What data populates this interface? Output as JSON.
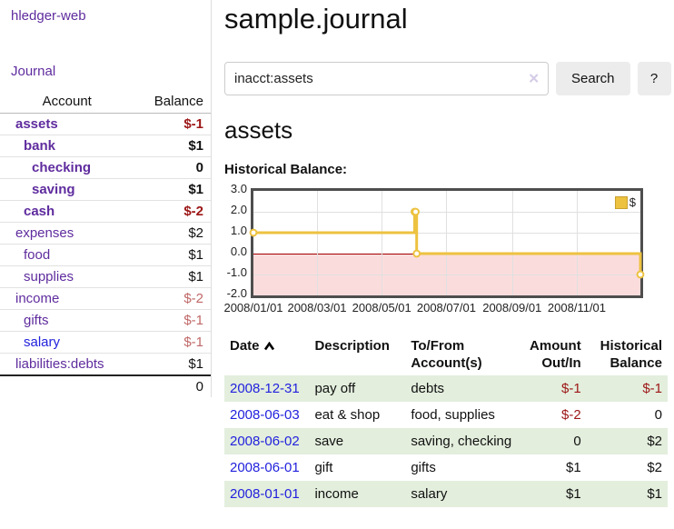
{
  "app": {
    "title": "hledger-web"
  },
  "sidebar": {
    "journal_link": "Journal",
    "accounts_table": {
      "headers": {
        "account": "Account",
        "balance": "Balance"
      },
      "rows": [
        {
          "name": "assets",
          "depth": 1,
          "bold": true,
          "balance": "$-1",
          "balance_class": "neg"
        },
        {
          "name": "bank",
          "depth": 2,
          "bold": true,
          "balance": "$1",
          "balance_class": ""
        },
        {
          "name": "checking",
          "depth": 3,
          "bold": true,
          "balance": "0",
          "balance_class": ""
        },
        {
          "name": "saving",
          "depth": 3,
          "bold": true,
          "balance": "$1",
          "balance_class": ""
        },
        {
          "name": "cash",
          "depth": 2,
          "bold": true,
          "balance": "$-2",
          "balance_class": "neg"
        },
        {
          "name": "expenses",
          "depth": 1,
          "bold": false,
          "balance": "$2",
          "balance_class": ""
        },
        {
          "name": "food",
          "depth": 2,
          "bold": false,
          "balance": "$1",
          "balance_class": ""
        },
        {
          "name": "supplies",
          "depth": 2,
          "bold": false,
          "balance": "$1",
          "balance_class": ""
        },
        {
          "name": "income",
          "depth": 1,
          "bold": false,
          "balance": "$-2",
          "balance_class": "soft-neg"
        },
        {
          "name": "gifts",
          "depth": 2,
          "bold": false,
          "balance": "$-1",
          "balance_class": "soft-neg"
        },
        {
          "name": "salary",
          "depth": 2,
          "bold": false,
          "balance": "$-1",
          "balance_class": "soft-neg",
          "link_color": "#2222dd"
        },
        {
          "name": "liabilities:debts",
          "depth": 1,
          "bold": false,
          "balance": "$1",
          "balance_class": ""
        }
      ],
      "total": "0"
    }
  },
  "main": {
    "title": "sample.journal",
    "search": {
      "value": "inacct:assets",
      "clear_icon": "✕",
      "button_label": "Search",
      "help_label": "?"
    },
    "account_heading": "assets",
    "chart_heading": "Historical Balance:"
  },
  "chart_data": {
    "type": "line",
    "title": "Historical Balance",
    "step": true,
    "series": [
      {
        "name": "$",
        "points": [
          [
            "2008-01-01",
            1
          ],
          [
            "2008-06-01",
            2
          ],
          [
            "2008-06-02",
            2
          ],
          [
            "2008-06-03",
            0
          ],
          [
            "2008-12-31",
            -1
          ]
        ]
      }
    ],
    "xlim": [
      "2008-01-01",
      "2008-12-31"
    ],
    "ylim": [
      -2,
      3
    ],
    "x_ticks": [
      "2008/01/01",
      "2008/03/01",
      "2008/05/01",
      "2008/07/01",
      "2008/09/01",
      "2008/11/01"
    ],
    "y_ticks": [
      3.0,
      2.0,
      1.0,
      0.0,
      -1.0,
      -2.0
    ],
    "legend": {
      "label": "$",
      "position": "top-right"
    },
    "grid": true,
    "colors": {
      "line": "#edc240",
      "marker_fill": "#ffffff",
      "negative_fill": "#fbdcdc",
      "zero_line": "#a00000",
      "grid": "#e0e0e0",
      "border": "#4e4e4e"
    }
  },
  "register": {
    "headers": {
      "date": "Date",
      "description": "Description",
      "accounts": "To/From Account(s)",
      "amount": "Amount Out/In",
      "balance": "Historical Balance"
    },
    "rows": [
      {
        "date": "2008-12-31",
        "description": "pay off",
        "accounts": "debts",
        "amount": "$-1",
        "amount_neg": true,
        "balance": "$-1",
        "balance_neg": true
      },
      {
        "date": "2008-06-03",
        "description": "eat & shop",
        "accounts": "food, supplies",
        "amount": "$-2",
        "amount_neg": true,
        "balance": "0",
        "balance_neg": false
      },
      {
        "date": "2008-06-02",
        "description": "save",
        "accounts": "saving, checking",
        "amount": "0",
        "amount_neg": false,
        "balance": "$2",
        "balance_neg": false
      },
      {
        "date": "2008-06-01",
        "description": "gift",
        "accounts": "gifts",
        "amount": "$1",
        "amount_neg": false,
        "balance": "$2",
        "balance_neg": false
      },
      {
        "date": "2008-01-01",
        "description": "income",
        "accounts": "salary",
        "amount": "$1",
        "amount_neg": false,
        "balance": "$1",
        "balance_neg": false
      }
    ]
  }
}
